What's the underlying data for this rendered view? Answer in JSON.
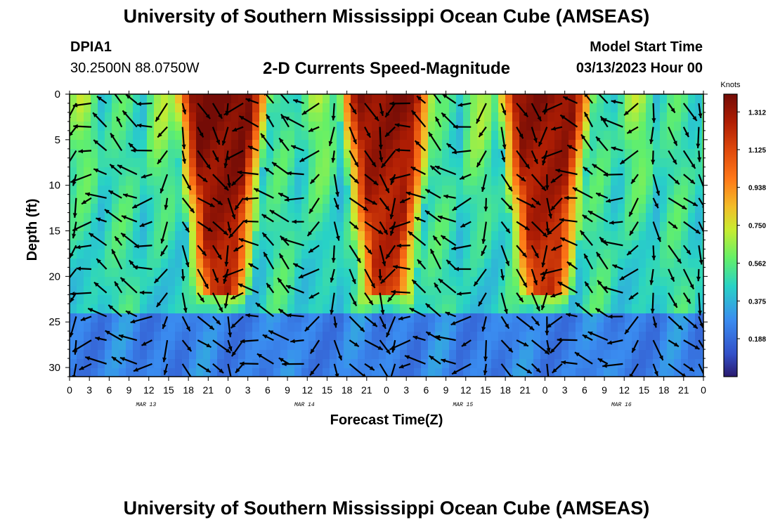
{
  "header": {
    "title": "University of Southern Mississippi Ocean Cube (AMSEAS)",
    "station": "DPIA1",
    "coords": "30.2500N  88.0750W",
    "subtitle": "2-D Currents Speed-Magnitude",
    "model_start_label": "Model Start Time",
    "model_start_value": "03/13/2023 Hour 00"
  },
  "footer": {
    "title": "University of Southern Mississippi Ocean Cube (AMSEAS)"
  },
  "chart_data": {
    "type": "heatmap",
    "xlabel": "Forecast Time(Z)",
    "ylabel": "Depth (ft)",
    "xlim_hours": [
      0,
      96
    ],
    "ylim": [
      31,
      0
    ],
    "x_tick_labels": [
      "0",
      "3",
      "6",
      "9",
      "12",
      "15",
      "18",
      "21",
      "0",
      "3",
      "6",
      "9",
      "12",
      "15",
      "18",
      "21",
      "0",
      "3",
      "6",
      "9",
      "12",
      "15",
      "18",
      "21",
      "0",
      "3",
      "6",
      "9",
      "12",
      "15",
      "18",
      "21",
      "0"
    ],
    "y_ticks": [
      0,
      5,
      10,
      15,
      20,
      25,
      30
    ],
    "date_labels": [
      {
        "label": "MAR 13",
        "hour": 12
      },
      {
        "label": "MAR 14",
        "hour": 36
      },
      {
        "label": "MAR 15",
        "hour": 60
      },
      {
        "label": "MAR 16",
        "hour": 84
      }
    ],
    "colorbar": {
      "unit": "Knots",
      "ticks": [
        "1.312",
        "1.125",
        "0.938",
        "0.750",
        "0.562",
        "0.375",
        "0.188"
      ],
      "min": 0.0,
      "max": 1.4
    },
    "strong_current_events": [
      {
        "start_hour": 17,
        "peak_hour": 23,
        "end_hour": 29,
        "max_depth_ft": 22,
        "peak_speed": 1.4
      },
      {
        "start_hour": 42,
        "peak_hour": 48,
        "end_hour": 54,
        "max_depth_ft": 22,
        "peak_speed": 1.35
      },
      {
        "start_hour": 66,
        "peak_hour": 72,
        "end_hour": 78,
        "max_depth_ft": 22,
        "peak_speed": 1.35
      }
    ]
  }
}
